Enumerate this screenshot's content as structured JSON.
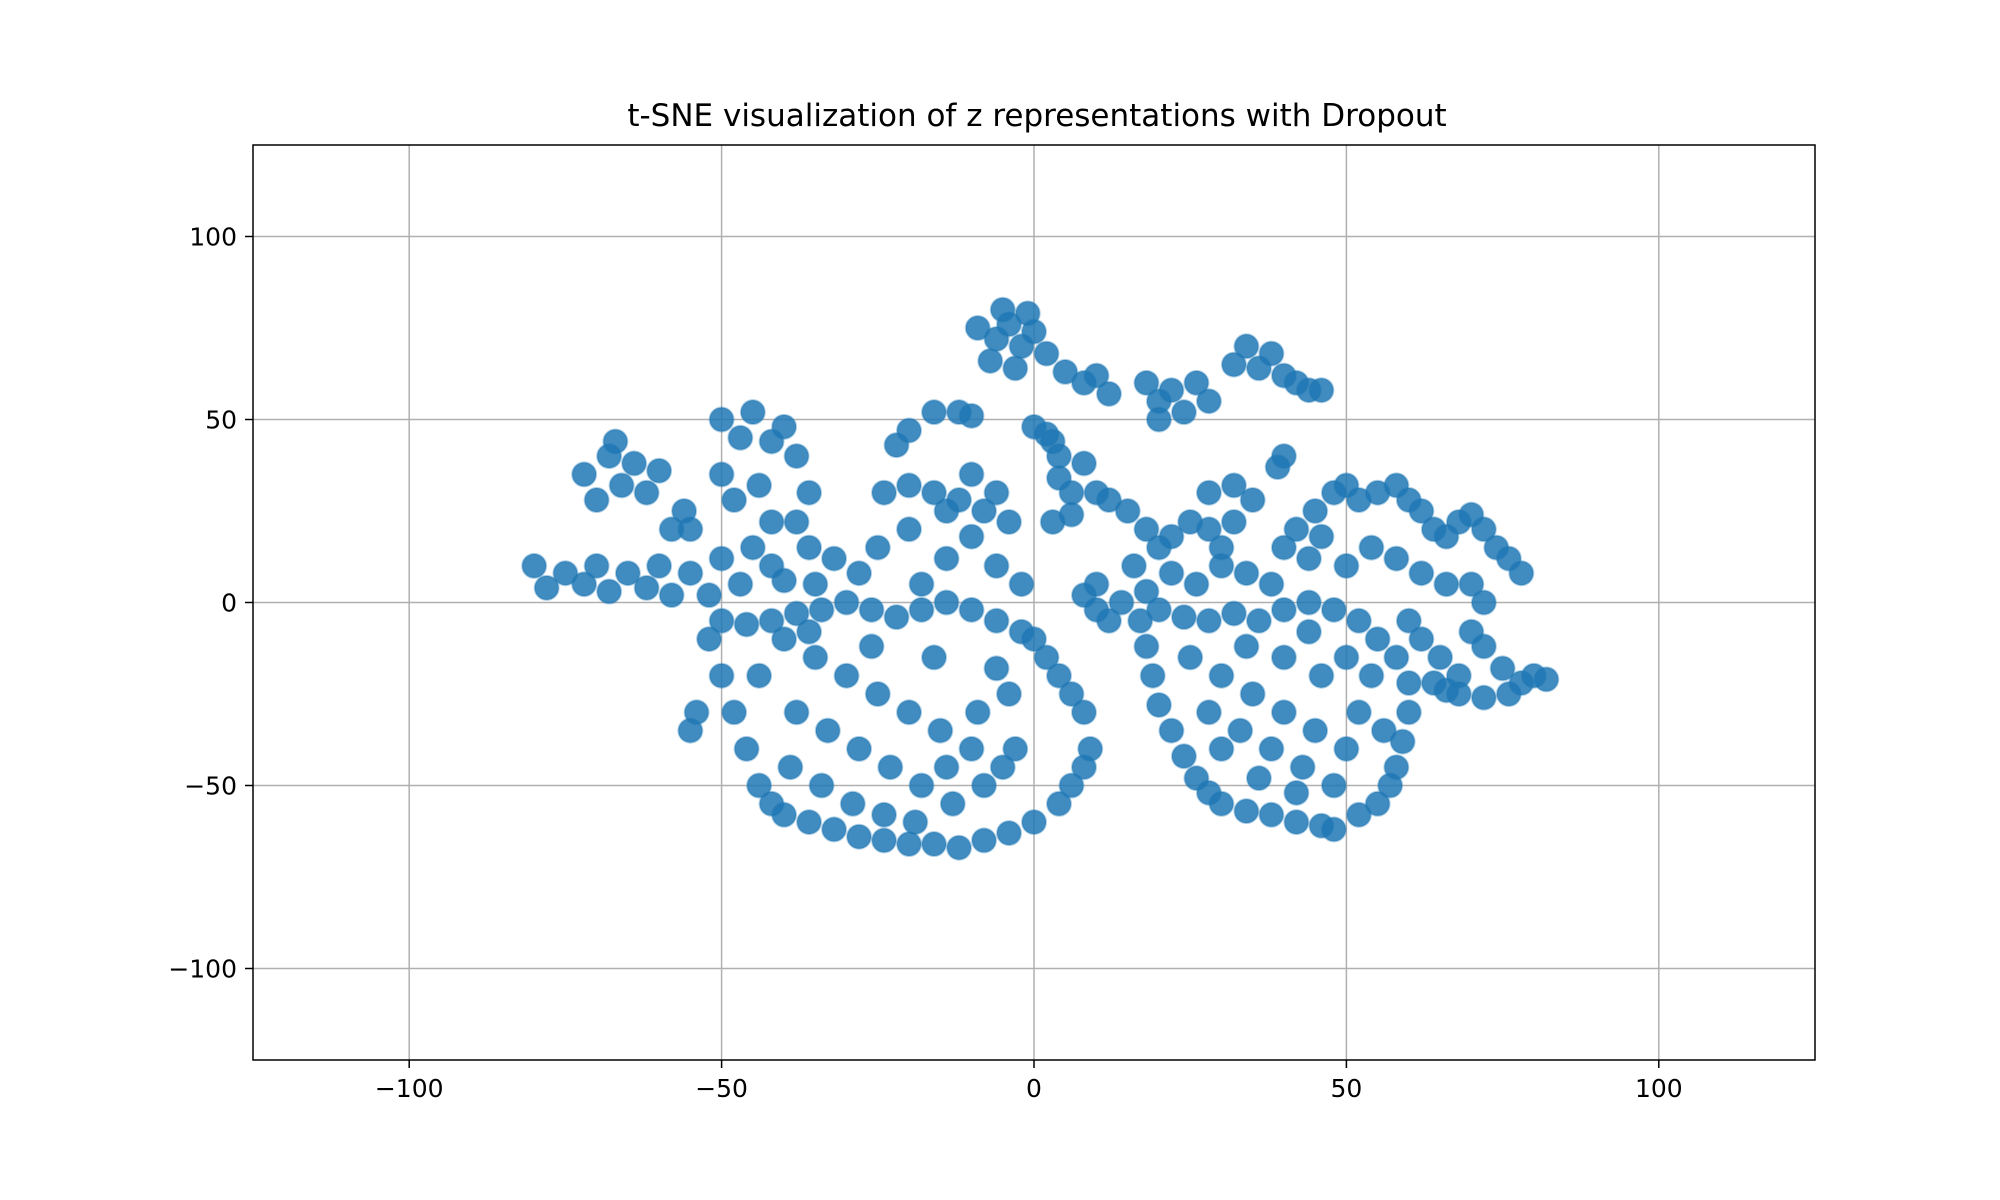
{
  "chart_data": {
    "type": "scatter",
    "title": "t-SNE visualization of z representations with Dropout",
    "xlabel": "",
    "ylabel": "",
    "xlim": [
      -125,
      125
    ],
    "ylim": [
      -125,
      125
    ],
    "x_ticks": [
      -100,
      -50,
      0,
      50,
      100
    ],
    "y_ticks": [
      -100,
      -50,
      0,
      50,
      100
    ],
    "x_tick_labels": [
      "−100",
      "−50",
      "0",
      "50",
      "100"
    ],
    "y_tick_labels": [
      "−100",
      "−50",
      "0",
      "50",
      "100"
    ],
    "grid": true,
    "legend": "none",
    "series": [
      {
        "color": "#1f77b4",
        "alpha": 0.2,
        "points": [
          [
            -80,
            10
          ],
          [
            -78,
            4
          ],
          [
            -75,
            8
          ],
          [
            -72,
            5
          ],
          [
            -70,
            10
          ],
          [
            -68,
            3
          ],
          [
            -65,
            8
          ],
          [
            -62,
            4
          ],
          [
            -60,
            10
          ],
          [
            -58,
            2
          ],
          [
            -55,
            8
          ],
          [
            -52,
            2
          ],
          [
            -50,
            12
          ],
          [
            -47,
            5
          ],
          [
            -45,
            15
          ],
          [
            -42,
            10
          ],
          [
            -40,
            6
          ],
          [
            -72,
            35
          ],
          [
            -70,
            28
          ],
          [
            -68,
            40
          ],
          [
            -66,
            32
          ],
          [
            -64,
            38
          ],
          [
            -62,
            30
          ],
          [
            -60,
            36
          ],
          [
            -67,
            44
          ],
          [
            -58,
            20
          ],
          [
            -56,
            25
          ],
          [
            -50,
            50
          ],
          [
            -47,
            45
          ],
          [
            -45,
            52
          ],
          [
            -42,
            44
          ],
          [
            -40,
            48
          ],
          [
            -38,
            40
          ],
          [
            -36,
            30
          ],
          [
            -44,
            32
          ],
          [
            -42,
            22
          ],
          [
            -38,
            22
          ],
          [
            -36,
            15
          ],
          [
            -48,
            28
          ],
          [
            -55,
            20
          ],
          [
            -50,
            35
          ],
          [
            -35,
            5
          ],
          [
            -32,
            12
          ],
          [
            -28,
            8
          ],
          [
            -25,
            15
          ],
          [
            -20,
            20
          ],
          [
            -18,
            5
          ],
          [
            -14,
            12
          ],
          [
            -10,
            18
          ],
          [
            -6,
            10
          ],
          [
            -2,
            5
          ],
          [
            -4,
            22
          ],
          [
            -24,
            30
          ],
          [
            -20,
            32
          ],
          [
            -16,
            30
          ],
          [
            -12,
            28
          ],
          [
            -10,
            35
          ],
          [
            -6,
            30
          ],
          [
            -8,
            25
          ],
          [
            -14,
            25
          ],
          [
            -22,
            43
          ],
          [
            -20,
            47
          ],
          [
            -16,
            52
          ],
          [
            -12,
            52
          ],
          [
            -10,
            51
          ],
          [
            -9,
            75
          ],
          [
            -6,
            72
          ],
          [
            -4,
            76
          ],
          [
            -2,
            70
          ],
          [
            0,
            74
          ],
          [
            -7,
            66
          ],
          [
            -3,
            64
          ],
          [
            2,
            68
          ],
          [
            -5,
            80
          ],
          [
            -1,
            79
          ],
          [
            5,
            63
          ],
          [
            8,
            60
          ],
          [
            10,
            62
          ],
          [
            12,
            57
          ],
          [
            0,
            48
          ],
          [
            3,
            44
          ],
          [
            4,
            40
          ],
          [
            2,
            46
          ],
          [
            4,
            34
          ],
          [
            6,
            30
          ],
          [
            8,
            38
          ],
          [
            10,
            30
          ],
          [
            12,
            28
          ],
          [
            6,
            24
          ],
          [
            3,
            22
          ],
          [
            18,
            60
          ],
          [
            20,
            55
          ],
          [
            22,
            58
          ],
          [
            24,
            52
          ],
          [
            26,
            60
          ],
          [
            28,
            55
          ],
          [
            20,
            50
          ],
          [
            32,
            65
          ],
          [
            34,
            70
          ],
          [
            36,
            64
          ],
          [
            38,
            68
          ],
          [
            40,
            62
          ],
          [
            42,
            60
          ],
          [
            44,
            58
          ],
          [
            46,
            58
          ],
          [
            39,
            37
          ],
          [
            40,
            40
          ],
          [
            28,
            30
          ],
          [
            32,
            32
          ],
          [
            35,
            28
          ],
          [
            15,
            25
          ],
          [
            18,
            20
          ],
          [
            20,
            15
          ],
          [
            22,
            18
          ],
          [
            25,
            22
          ],
          [
            28,
            20
          ],
          [
            30,
            15
          ],
          [
            32,
            22
          ],
          [
            16,
            10
          ],
          [
            10,
            5
          ],
          [
            12,
            -5
          ],
          [
            8,
            2
          ],
          [
            10,
            -2
          ],
          [
            14,
            0
          ],
          [
            18,
            3
          ],
          [
            22,
            8
          ],
          [
            26,
            5
          ],
          [
            30,
            10
          ],
          [
            34,
            8
          ],
          [
            38,
            5
          ],
          [
            40,
            15
          ],
          [
            42,
            20
          ],
          [
            45,
            25
          ],
          [
            48,
            30
          ],
          [
            50,
            32
          ],
          [
            52,
            28
          ],
          [
            55,
            30
          ],
          [
            58,
            32
          ],
          [
            60,
            28
          ],
          [
            62,
            25
          ],
          [
            64,
            20
          ],
          [
            66,
            18
          ],
          [
            68,
            22
          ],
          [
            70,
            24
          ],
          [
            72,
            20
          ],
          [
            74,
            15
          ],
          [
            76,
            12
          ],
          [
            78,
            8
          ],
          [
            44,
            12
          ],
          [
            46,
            18
          ],
          [
            50,
            10
          ],
          [
            54,
            15
          ],
          [
            58,
            12
          ],
          [
            62,
            8
          ],
          [
            66,
            5
          ],
          [
            70,
            5
          ],
          [
            72,
            0
          ],
          [
            60,
            -5
          ],
          [
            62,
            -10
          ],
          [
            65,
            -15
          ],
          [
            68,
            -20
          ],
          [
            70,
            -8
          ],
          [
            72,
            -12
          ],
          [
            75,
            -18
          ],
          [
            78,
            -22
          ],
          [
            80,
            -20
          ],
          [
            82,
            -21
          ],
          [
            76,
            -25
          ],
          [
            72,
            -26
          ],
          [
            68,
            -25
          ],
          [
            64,
            -22
          ],
          [
            66,
            -24
          ],
          [
            -52,
            -10
          ],
          [
            -50,
            -20
          ],
          [
            -48,
            -30
          ],
          [
            -46,
            -40
          ],
          [
            -44,
            -50
          ],
          [
            -42,
            -55
          ],
          [
            -40,
            -58
          ],
          [
            -36,
            -60
          ],
          [
            -32,
            -62
          ],
          [
            -28,
            -64
          ],
          [
            -24,
            -65
          ],
          [
            -20,
            -66
          ],
          [
            -16,
            -66
          ],
          [
            -12,
            -67
          ],
          [
            -8,
            -65
          ],
          [
            -4,
            -63
          ],
          [
            0,
            -60
          ],
          [
            4,
            -55
          ],
          [
            6,
            -50
          ],
          [
            8,
            -45
          ],
          [
            9,
            -40
          ],
          [
            8,
            -30
          ],
          [
            6,
            -25
          ],
          [
            4,
            -20
          ],
          [
            2,
            -15
          ],
          [
            0,
            -10
          ],
          [
            -2,
            -8
          ],
          [
            -6,
            -5
          ],
          [
            -10,
            -2
          ],
          [
            -14,
            0
          ],
          [
            -18,
            -2
          ],
          [
            -22,
            -4
          ],
          [
            -26,
            -2
          ],
          [
            -30,
            0
          ],
          [
            -34,
            -2
          ],
          [
            -38,
            -3
          ],
          [
            -42,
            -5
          ],
          [
            -46,
            -6
          ],
          [
            -50,
            -5
          ],
          [
            -40,
            -10
          ],
          [
            -35,
            -15
          ],
          [
            -30,
            -20
          ],
          [
            -25,
            -25
          ],
          [
            -20,
            -30
          ],
          [
            -15,
            -35
          ],
          [
            -10,
            -40
          ],
          [
            -5,
            -45
          ],
          [
            -38,
            -30
          ],
          [
            -33,
            -35
          ],
          [
            -28,
            -40
          ],
          [
            -23,
            -45
          ],
          [
            -18,
            -50
          ],
          [
            -13,
            -55
          ],
          [
            -8,
            -50
          ],
          [
            -3,
            -40
          ],
          [
            -44,
            -20
          ],
          [
            -39,
            -45
          ],
          [
            -34,
            -50
          ],
          [
            -29,
            -55
          ],
          [
            -24,
            -58
          ],
          [
            -19,
            -60
          ],
          [
            -14,
            -45
          ],
          [
            -9,
            -30
          ],
          [
            -4,
            -25
          ],
          [
            -36,
            -8
          ],
          [
            -26,
            -12
          ],
          [
            -16,
            -15
          ],
          [
            -6,
            -18
          ],
          [
            -54,
            -30
          ],
          [
            -55,
            -35
          ],
          [
            17,
            -5
          ],
          [
            18,
            -12
          ],
          [
            19,
            -20
          ],
          [
            20,
            -28
          ],
          [
            22,
            -35
          ],
          [
            24,
            -42
          ],
          [
            26,
            -48
          ],
          [
            28,
            -52
          ],
          [
            30,
            -55
          ],
          [
            34,
            -57
          ],
          [
            38,
            -58
          ],
          [
            42,
            -60
          ],
          [
            46,
            -61
          ],
          [
            48,
            -62
          ],
          [
            52,
            -58
          ],
          [
            55,
            -55
          ],
          [
            57,
            -50
          ],
          [
            58,
            -45
          ],
          [
            59,
            -38
          ],
          [
            60,
            -30
          ],
          [
            60,
            -22
          ],
          [
            58,
            -15
          ],
          [
            55,
            -10
          ],
          [
            52,
            -5
          ],
          [
            48,
            -2
          ],
          [
            44,
            0
          ],
          [
            40,
            -2
          ],
          [
            36,
            -5
          ],
          [
            32,
            -3
          ],
          [
            28,
            -5
          ],
          [
            24,
            -4
          ],
          [
            20,
            -2
          ],
          [
            25,
            -15
          ],
          [
            30,
            -20
          ],
          [
            35,
            -25
          ],
          [
            40,
            -30
          ],
          [
            45,
            -35
          ],
          [
            50,
            -40
          ],
          [
            28,
            -30
          ],
          [
            33,
            -35
          ],
          [
            38,
            -40
          ],
          [
            43,
            -45
          ],
          [
            48,
            -50
          ],
          [
            52,
            -30
          ],
          [
            46,
            -20
          ],
          [
            40,
            -15
          ],
          [
            34,
            -12
          ],
          [
            30,
            -40
          ],
          [
            36,
            -48
          ],
          [
            42,
            -52
          ],
          [
            54,
            -20
          ],
          [
            56,
            -35
          ],
          [
            50,
            -15
          ],
          [
            44,
            -8
          ]
        ]
      }
    ]
  }
}
